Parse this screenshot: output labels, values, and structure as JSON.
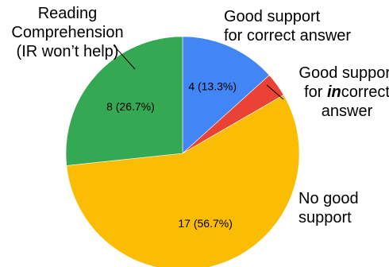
{
  "chart_data": {
    "type": "pie",
    "title": "",
    "total": 30,
    "slices": [
      {
        "label_lines": [
          {
            "parts": [
              {
                "text": "Good support"
              }
            ]
          },
          {
            "parts": [
              {
                "text": "for correct answer"
              }
            ]
          }
        ],
        "value": 4,
        "value_label": "4 (13.3%)",
        "color": "#4285F4"
      },
      {
        "label_lines": [
          {
            "parts": [
              {
                "text": "Good support"
              }
            ]
          },
          {
            "parts": [
              {
                "text": "for "
              },
              {
                "text": "in",
                "style": "bold-italic"
              },
              {
                "text": "correct"
              }
            ]
          },
          {
            "parts": [
              {
                "text": "answer"
              }
            ]
          }
        ],
        "value": 1,
        "value_label": "",
        "color": "#EA4335"
      },
      {
        "label_lines": [
          {
            "parts": [
              {
                "text": "No good"
              }
            ]
          },
          {
            "parts": [
              {
                "text": "support"
              }
            ]
          }
        ],
        "value": 17,
        "value_label": "17 (56.7%)",
        "color": "#FBBC04"
      },
      {
        "label_lines": [
          {
            "parts": [
              {
                "text": "Reading"
              }
            ]
          },
          {
            "parts": [
              {
                "text": "Comprehension"
              }
            ]
          },
          {
            "parts": [
              {
                "text": "(IR won’t help)"
              }
            ]
          }
        ],
        "value": 8,
        "value_label": "8 (26.7%)",
        "color": "#34A853"
      }
    ],
    "start_angle": "12 o'clock",
    "direction": "clockwise"
  }
}
